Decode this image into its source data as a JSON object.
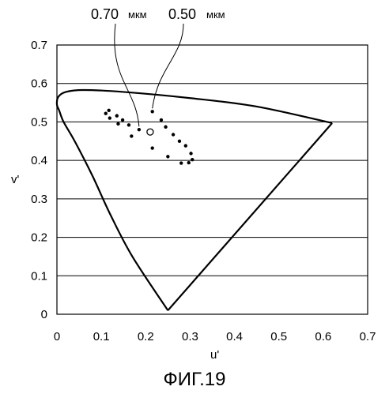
{
  "chart_data": {
    "type": "scatter",
    "title": "",
    "xlabel": "u'",
    "ylabel": "v'",
    "xlim": [
      0,
      0.7
    ],
    "ylim": [
      0,
      0.7
    ],
    "xticks": [
      "0",
      "0.1",
      "0.2",
      "0.3",
      "0.4",
      "0.5",
      "0.6",
      "0.7"
    ],
    "yticks": [
      "0",
      "0.1",
      "0.2",
      "0.3",
      "0.4",
      "0.5",
      "0.6",
      "0.7"
    ],
    "grid": "horizontal",
    "spectral_locus": [
      [
        0.25,
        0.01
      ],
      [
        0.17,
        0.15
      ],
      [
        0.12,
        0.26
      ],
      [
        0.08,
        0.36
      ],
      [
        0.04,
        0.45
      ],
      [
        0.015,
        0.5
      ],
      [
        0.005,
        0.53
      ],
      [
        0.0,
        0.545
      ],
      [
        0.003,
        0.565
      ],
      [
        0.02,
        0.578
      ],
      [
        0.06,
        0.583
      ],
      [
        0.15,
        0.578
      ],
      [
        0.3,
        0.562
      ],
      [
        0.45,
        0.54
      ],
      [
        0.62,
        0.497
      ]
    ],
    "purple_line": [
      [
        0.62,
        0.497
      ],
      [
        0.25,
        0.01
      ]
    ],
    "points": [
      {
        "x": 0.11,
        "y": 0.522
      },
      {
        "x": 0.117,
        "y": 0.53
      },
      {
        "x": 0.119,
        "y": 0.51
      },
      {
        "x": 0.135,
        "y": 0.516
      },
      {
        "x": 0.138,
        "y": 0.495
      },
      {
        "x": 0.148,
        "y": 0.505
      },
      {
        "x": 0.162,
        "y": 0.492
      },
      {
        "x": 0.168,
        "y": 0.463
      },
      {
        "x": 0.185,
        "y": 0.48
      },
      {
        "x": 0.215,
        "y": 0.527
      },
      {
        "x": 0.215,
        "y": 0.432
      },
      {
        "x": 0.235,
        "y": 0.505
      },
      {
        "x": 0.245,
        "y": 0.487
      },
      {
        "x": 0.25,
        "y": 0.41
      },
      {
        "x": 0.262,
        "y": 0.467
      },
      {
        "x": 0.276,
        "y": 0.45
      },
      {
        "x": 0.28,
        "y": 0.393
      },
      {
        "x": 0.29,
        "y": 0.438
      },
      {
        "x": 0.297,
        "y": 0.394
      },
      {
        "x": 0.302,
        "y": 0.418
      },
      {
        "x": 0.305,
        "y": 0.402
      }
    ],
    "open_point": {
      "x": 0.21,
      "y": 0.474
    },
    "annotations": [
      {
        "number": "0.70",
        "unit": "мкм",
        "target": {
          "x": 0.185,
          "y": 0.48
        }
      },
      {
        "number": "0.50",
        "unit": "мкм",
        "target": {
          "x": 0.215,
          "y": 0.527
        }
      }
    ]
  },
  "figure_caption": "ФИГ.19"
}
